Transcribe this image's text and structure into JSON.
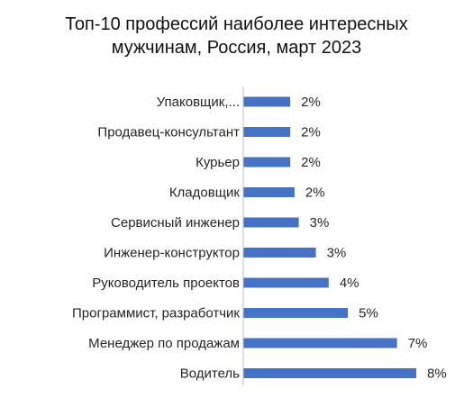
{
  "chart_data": {
    "type": "bar",
    "orientation": "horizontal",
    "title": "Топ-10 профессий наиболее интересных\nмужчинам, Россия, март 2023",
    "categories": [
      "Упаковщик,...",
      "Продавец-консультант",
      "Курьер",
      "Кладовщик",
      "Сервисный инженер",
      "Инженер-конструктор",
      "Руководитель проектов",
      "Программист, разработчик",
      "Менеджер по продажам",
      "Водитель"
    ],
    "values": [
      2.2,
      2.2,
      2.2,
      2.4,
      2.6,
      3.4,
      4.0,
      4.9,
      7.2,
      8.1
    ],
    "data_labels": [
      "2%",
      "2%",
      "2%",
      "2%",
      "3%",
      "3%",
      "4%",
      "5%",
      "7%",
      "8%"
    ],
    "bar_color": "#4472c4",
    "xlim": [
      0,
      8.1
    ],
    "grid": false,
    "legend": "none"
  }
}
